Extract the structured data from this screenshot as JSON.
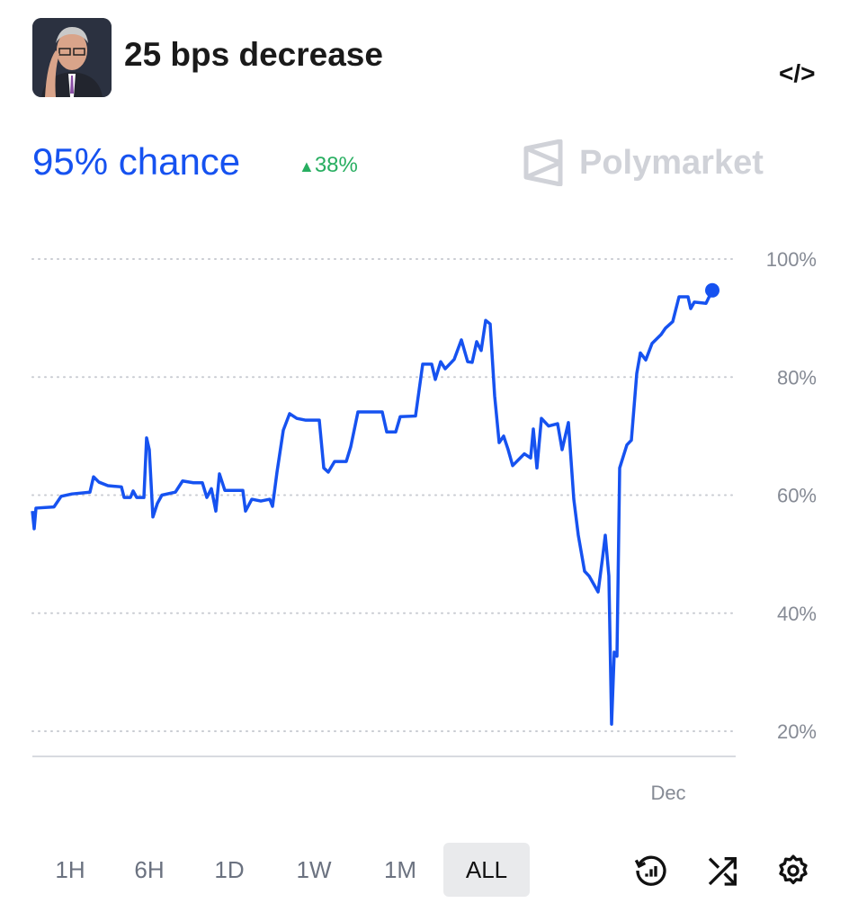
{
  "header": {
    "title": "25 bps decrease",
    "embed_icon": "code-icon",
    "avatar": "portrait"
  },
  "summary": {
    "chance": "95% chance",
    "change": "38%",
    "change_direction": "up",
    "change_color": "#27ae60",
    "accent": "#1652f0"
  },
  "brand": {
    "name": "Polymarket",
    "icon": "polymarket-logo-icon"
  },
  "timeframes": [
    {
      "label": "1H"
    },
    {
      "label": "6H"
    },
    {
      "label": "1D"
    },
    {
      "label": "1W"
    },
    {
      "label": "1M"
    },
    {
      "label": "ALL",
      "selected": true
    }
  ],
  "toolbar_icons": [
    "history-chart-icon",
    "shuffle-icon",
    "settings-gear-icon"
  ],
  "chart_data": {
    "type": "line",
    "grid": true,
    "ylim": [
      20,
      100
    ],
    "yticks": [
      "20%",
      "40%",
      "60%",
      "80%",
      "100%"
    ],
    "xticks": [
      "Dec"
    ],
    "series": [
      {
        "color": "#1652f0",
        "points": [
          [
            0,
            57.3
          ],
          [
            2,
            54.3
          ],
          [
            4,
            57.8
          ],
          [
            24,
            58
          ],
          [
            32,
            59.8
          ],
          [
            44,
            60.2
          ],
          [
            64,
            60.5
          ],
          [
            68,
            63.1
          ],
          [
            74,
            62.2
          ],
          [
            84,
            61.6
          ],
          [
            99,
            61.4
          ],
          [
            102,
            59.6
          ],
          [
            109,
            59.6
          ],
          [
            112,
            60.7
          ],
          [
            116,
            59.6
          ],
          [
            124,
            59.6
          ],
          [
            127,
            69.7
          ],
          [
            130,
            67.7
          ],
          [
            134,
            56.3
          ],
          [
            139,
            58.6
          ],
          [
            144,
            60
          ],
          [
            159,
            60.5
          ],
          [
            167,
            62.4
          ],
          [
            179,
            62.1
          ],
          [
            189,
            62.1
          ],
          [
            194,
            59.6
          ],
          [
            199,
            61.1
          ],
          [
            204,
            57.3
          ],
          [
            208,
            63.6
          ],
          [
            214,
            60.8
          ],
          [
            234,
            60.8
          ],
          [
            237,
            57.3
          ],
          [
            244,
            59.3
          ],
          [
            254,
            59
          ],
          [
            264,
            59.3
          ],
          [
            267,
            58.1
          ],
          [
            272,
            63.9
          ],
          [
            279,
            71
          ],
          [
            286,
            73.8
          ],
          [
            294,
            73
          ],
          [
            304,
            72.7
          ],
          [
            319,
            72.7
          ],
          [
            324,
            64.6
          ],
          [
            329,
            63.9
          ],
          [
            336,
            65.7
          ],
          [
            349,
            65.7
          ],
          [
            354,
            68.2
          ],
          [
            362,
            74.1
          ],
          [
            389,
            74.1
          ],
          [
            394,
            70.7
          ],
          [
            404,
            70.7
          ],
          [
            409,
            73.3
          ],
          [
            426,
            73.4
          ],
          [
            434,
            82.2
          ],
          [
            444,
            82.2
          ],
          [
            448,
            79.6
          ],
          [
            454,
            82.6
          ],
          [
            459,
            81.4
          ],
          [
            469,
            83
          ],
          [
            477,
            86.3
          ],
          [
            484,
            82.6
          ],
          [
            489,
            82.5
          ],
          [
            494,
            86
          ],
          [
            499,
            84.5
          ],
          [
            504,
            89.6
          ],
          [
            509,
            89
          ],
          [
            514,
            76.8
          ],
          [
            519,
            68.9
          ],
          [
            524,
            70
          ],
          [
            529,
            67.7
          ],
          [
            534,
            65
          ],
          [
            547,
            67
          ],
          [
            554,
            66.3
          ],
          [
            557,
            71.2
          ],
          [
            561,
            64.6
          ],
          [
            566,
            73
          ],
          [
            574,
            71.7
          ],
          [
            584,
            72.1
          ],
          [
            589,
            67.7
          ],
          [
            596,
            72.3
          ],
          [
            602,
            59.3
          ],
          [
            607,
            53.2
          ],
          [
            614,
            47.1
          ],
          [
            619,
            46.3
          ],
          [
            629,
            43.6
          ],
          [
            634,
            49.4
          ],
          [
            637,
            53.2
          ],
          [
            641,
            46.3
          ],
          [
            644,
            21.2
          ],
          [
            647,
            33.4
          ],
          [
            650,
            32.7
          ],
          [
            653,
            64.6
          ],
          [
            661,
            68.5
          ],
          [
            666,
            69.3
          ],
          [
            672,
            80.6
          ],
          [
            676,
            84.1
          ],
          [
            682,
            82.9
          ],
          [
            689,
            85.7
          ],
          [
            699,
            87.2
          ],
          [
            704,
            88.3
          ],
          [
            712,
            89.4
          ],
          [
            719,
            93.6
          ],
          [
            729,
            93.6
          ],
          [
            732,
            91.6
          ],
          [
            736,
            92.7
          ],
          [
            749,
            92.5
          ],
          [
            756,
            94.7
          ]
        ]
      }
    ],
    "current_value": 95
  }
}
